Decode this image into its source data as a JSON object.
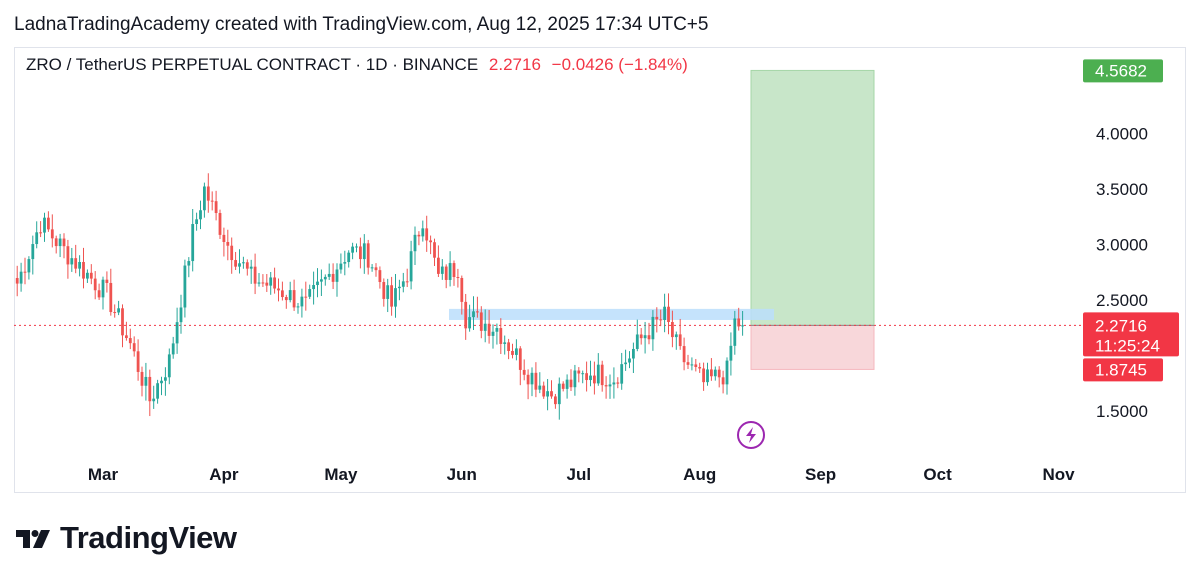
{
  "header": {
    "attribution": "LadnaTradingAcademy created with TradingView.com, Aug 12, 2025 17:34 UTC+5"
  },
  "legend": {
    "symbol": "ZRO / TetherUS PERPETUAL CONTRACT · 1D · BINANCE",
    "price": "2.2716",
    "change": "−0.0426 (−1.84%)"
  },
  "price_tags": {
    "target": "4.5682",
    "current": "2.2716",
    "countdown": "11:25:24",
    "stop": "1.8745"
  },
  "brand": {
    "name": "TradingView"
  },
  "colors": {
    "up": "#26a69a",
    "down": "#ef5350",
    "profit_zone": "#c8e6c9",
    "loss_zone": "#f8d7da",
    "resistance_zone": "#bbdefb",
    "target_tag": "#4caf50",
    "price_tag": "#f23645"
  },
  "icons": {
    "event_marker": "lightning-icon"
  },
  "chart_data": {
    "type": "candlestick",
    "title": "ZRO / TetherUS PERPETUAL CONTRACT · 1D · BINANCE",
    "x_tick_labels": [
      "Mar",
      "Apr",
      "May",
      "Jun",
      "Jul",
      "Aug",
      "Sep",
      "Oct",
      "Nov"
    ],
    "y_tick_labels": [
      "1.5000",
      "2.5000",
      "3.0000",
      "3.5000",
      "4.0000"
    ],
    "ylim": [
      1.0,
      4.7
    ],
    "last_price": 2.2716,
    "ohlc_anchors": [
      {
        "date": "Feb 10",
        "close": 2.65
      },
      {
        "date": "Feb 16",
        "close": 3.2
      },
      {
        "date": "Feb 22",
        "close": 2.95
      },
      {
        "date": "Mar 2",
        "close": 2.55
      },
      {
        "date": "Mar 8",
        "close": 2.1
      },
      {
        "date": "Mar 13",
        "close": 1.6
      },
      {
        "date": "Mar 18",
        "close": 1.95
      },
      {
        "date": "Mar 24",
        "close": 3.1
      },
      {
        "date": "Mar 27",
        "close": 3.5
      },
      {
        "date": "Apr 2",
        "close": 3.0
      },
      {
        "date": "Apr 8",
        "close": 2.7
      },
      {
        "date": "Apr 15",
        "close": 2.6
      },
      {
        "date": "Apr 22",
        "close": 2.45
      },
      {
        "date": "May 3",
        "close": 2.95
      },
      {
        "date": "May 8",
        "close": 2.9
      },
      {
        "date": "May 14",
        "close": 2.45
      },
      {
        "date": "May 18",
        "close": 2.75
      },
      {
        "date": "May 22",
        "close": 3.25
      },
      {
        "date": "May 26",
        "close": 2.7
      },
      {
        "date": "May 31",
        "close": 2.8
      },
      {
        "date": "Jun 2",
        "close": 2.35
      },
      {
        "date": "Jun 10",
        "close": 2.25
      },
      {
        "date": "Jun 18",
        "close": 1.85
      },
      {
        "date": "Jun 24",
        "close": 1.65
      },
      {
        "date": "Jul 4",
        "close": 1.85
      },
      {
        "date": "Jul 10",
        "close": 1.8
      },
      {
        "date": "Jul 18",
        "close": 2.2
      },
      {
        "date": "Jul 23",
        "close": 2.35
      },
      {
        "date": "Jul 27",
        "close": 2.0
      },
      {
        "date": "Aug 2",
        "close": 1.75
      },
      {
        "date": "Aug 8",
        "close": 1.85
      },
      {
        "date": "Aug 10",
        "close": 2.3
      },
      {
        "date": "Aug 12",
        "close": 2.2716
      }
    ],
    "position": {
      "side": "long",
      "entry": 2.2716,
      "target": 4.5682,
      "stop": 1.8745
    },
    "resistance_zone": [
      2.32,
      2.42
    ]
  }
}
